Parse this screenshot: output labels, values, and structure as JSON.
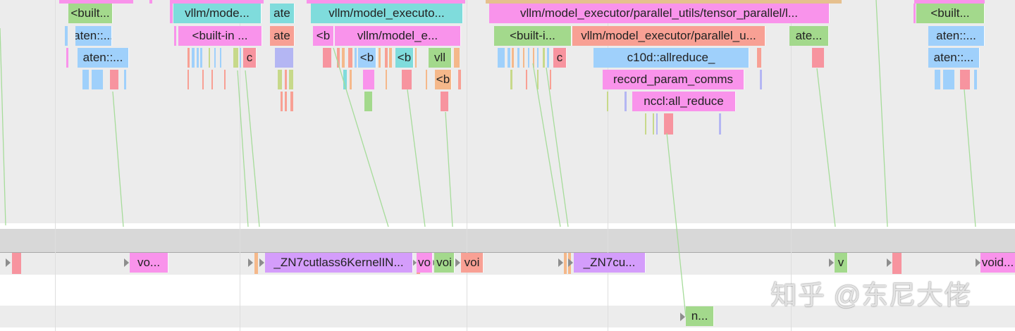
{
  "colors": {
    "green": "#a3d98c",
    "blue": "#9fd0fb",
    "pink": "#f993eb",
    "teal": "#7fdcdc",
    "salmon": "#f8a094",
    "rose": "#f7949f",
    "orange": "#f5b88a",
    "purple": "#d49dfb",
    "lavender": "#b4b6f3",
    "lime": "#c7d98a",
    "tan": "#e6c08e"
  },
  "cpu_rows": [
    [
      {
        "label": "<built...",
        "color": "green"
      },
      {
        "label": "vllm/mode...",
        "color": "teal"
      },
      {
        "label": "ate",
        "color": "teal"
      },
      {
        "label": "vllm/model_executo...",
        "color": "teal"
      },
      {
        "label": "vllm/model_executor/parallel_utils/tensor_parallel/l...",
        "color": "pink"
      },
      {
        "label": "<built...",
        "color": "green"
      }
    ],
    [
      {
        "label": "aten::...",
        "color": "blue"
      },
      {
        "label": "<built-in ...",
        "color": "pink"
      },
      {
        "label": "ate",
        "color": "salmon"
      },
      {
        "label": "<b",
        "color": "pink"
      },
      {
        "label": "vllm/model_e...",
        "color": "pink"
      },
      {
        "label": "<built-i...",
        "color": "green"
      },
      {
        "label": "vllm/model_executor/parallel_u...",
        "color": "salmon"
      },
      {
        "label": "ate...",
        "color": "green"
      },
      {
        "label": "aten::...",
        "color": "blue"
      }
    ],
    [
      {
        "label": "aten::...",
        "color": "blue"
      },
      {
        "label": "c",
        "color": "rose"
      },
      {
        "label": "<b",
        "color": "blue"
      },
      {
        "label": "<b",
        "color": "teal"
      },
      {
        "label": "vll",
        "color": "green"
      },
      {
        "label": "c",
        "color": "rose"
      },
      {
        "label": "c10d::allreduce_",
        "color": "blue"
      },
      {
        "label": "aten::...",
        "color": "blue"
      }
    ],
    [
      {
        "label": "<b",
        "color": "orange"
      },
      {
        "label": "record_param_comms",
        "color": "pink"
      }
    ],
    [
      {
        "label": "nccl:all_reduce",
        "color": "pink"
      }
    ]
  ],
  "gpu_row": [
    {
      "label": "vo...",
      "color": "pink"
    },
    {
      "label": "_ZN7cutlass6KernelIN...",
      "color": "purple"
    },
    {
      "label": "vo",
      "color": "pink"
    },
    {
      "label": "voi",
      "color": "green"
    },
    {
      "label": "voi",
      "color": "salmon"
    },
    {
      "label": "_ZN7cu...",
      "color": "purple"
    },
    {
      "label": "v",
      "color": "green"
    },
    {
      "label": "void...",
      "color": "pink"
    }
  ],
  "nccl_row": [
    {
      "label": "n...",
      "color": "green"
    }
  ],
  "watermark": "知乎 @东尼大佬"
}
